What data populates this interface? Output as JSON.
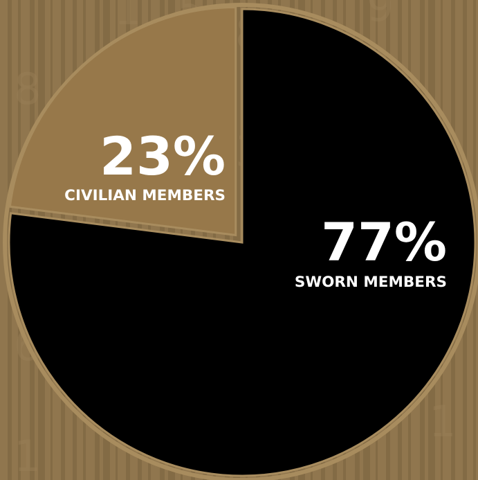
{
  "chart_data": {
    "type": "pie",
    "title": "",
    "slices": [
      {
        "label": "SWORN MEMBERS",
        "value": 77,
        "value_label": "77%",
        "color": "#000000"
      },
      {
        "label": "CIVILIAN MEMBERS",
        "value": 23,
        "value_label": "23%",
        "color": "#97784a"
      }
    ],
    "start": "12 o'clock",
    "direction": "clockwise",
    "exploded_slice": "CIVILIAN MEMBERS",
    "legend": "none"
  },
  "colors": {
    "background": "#8a7149",
    "stripe_light": "#957a52",
    "stripe_dark": "#7d6641",
    "rim": "#a88c5e",
    "label_text": "#ffffff"
  }
}
